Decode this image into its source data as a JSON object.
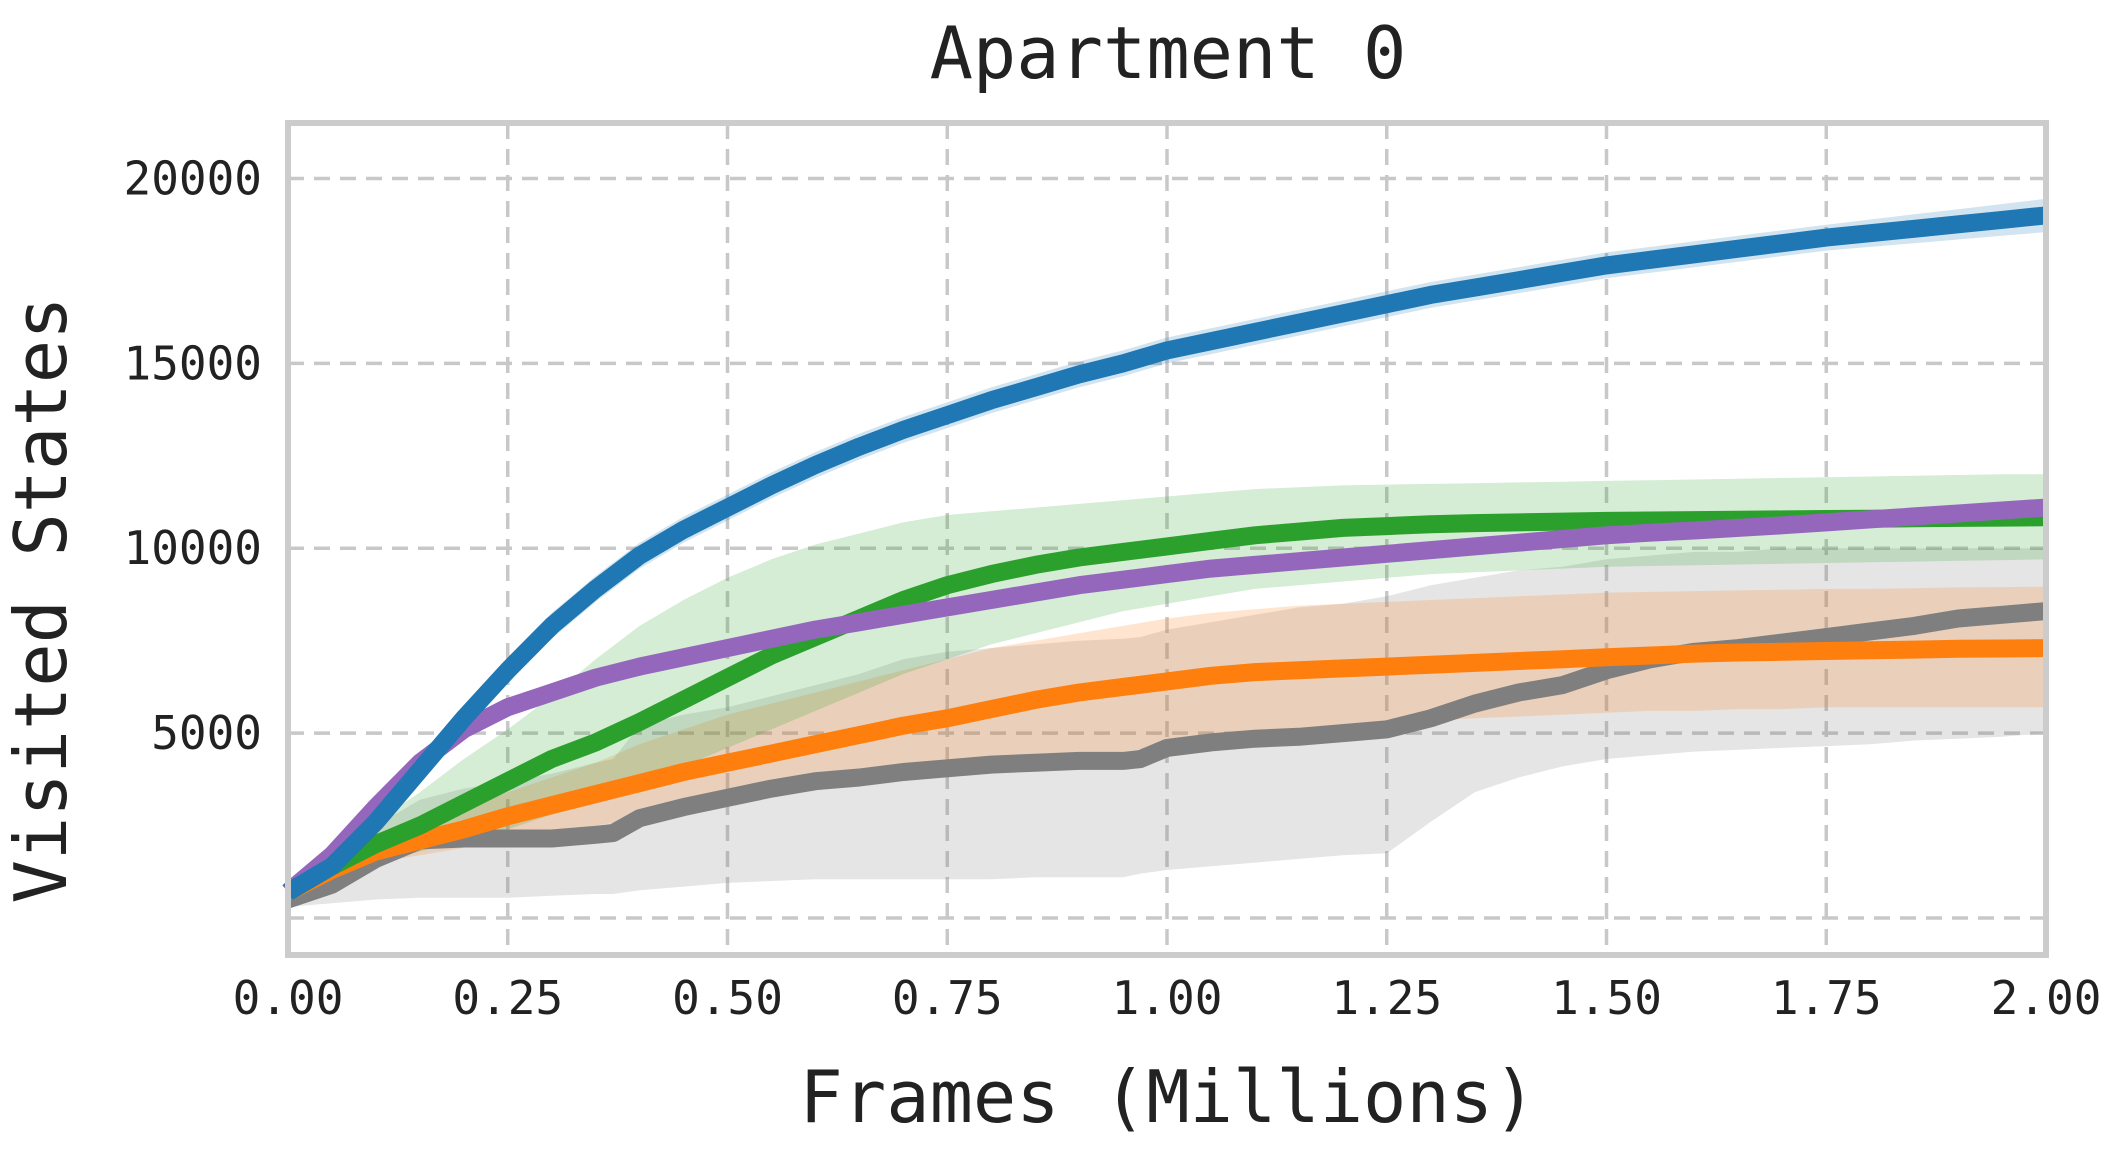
{
  "chart_data": {
    "type": "line",
    "title": "Apartment 0",
    "xlabel": "Frames (Millions)",
    "ylabel": "Visited States",
    "xlim": [
      0,
      2.0
    ],
    "ylim": [
      -1000,
      21500
    ],
    "xticks": [
      0,
      0.25,
      0.5,
      0.75,
      1.0,
      1.25,
      1.5,
      1.75,
      2.0
    ],
    "xtick_labels": [
      "0.00",
      "0.25",
      "0.50",
      "0.75",
      "1.00",
      "1.25",
      "1.50",
      "1.75",
      "2.00"
    ],
    "yticks": [
      0,
      5000,
      10000,
      15000,
      20000
    ],
    "ytick_labels": [
      "",
      "5000",
      "10000",
      "15000",
      "20000"
    ],
    "grid": true,
    "legend": "none",
    "series": [
      {
        "color": "#7f7f7f",
        "x": [
          0,
          0.05,
          0.1,
          0.15,
          0.2,
          0.25,
          0.3,
          0.35,
          0.37,
          0.4,
          0.45,
          0.5,
          0.55,
          0.6,
          0.65,
          0.7,
          0.75,
          0.8,
          0.85,
          0.9,
          0.95,
          0.97,
          1.0,
          1.05,
          1.1,
          1.15,
          1.2,
          1.25,
          1.3,
          1.35,
          1.4,
          1.45,
          1.5,
          1.55,
          1.6,
          1.65,
          1.7,
          1.75,
          1.8,
          1.85,
          1.9,
          1.95,
          2.0
        ],
        "y": [
          500,
          900,
          1600,
          2100,
          2150,
          2150,
          2150,
          2250,
          2300,
          2700,
          3000,
          3250,
          3500,
          3700,
          3800,
          3950,
          4050,
          4150,
          4200,
          4250,
          4250,
          4300,
          4600,
          4750,
          4850,
          4900,
          5000,
          5100,
          5400,
          5800,
          6100,
          6300,
          6700,
          7000,
          7200,
          7300,
          7450,
          7600,
          7750,
          7900,
          8100,
          8200,
          8300
        ],
        "lower": [
          300,
          400,
          500,
          550,
          550,
          550,
          600,
          650,
          650,
          750,
          850,
          950,
          1000,
          1050,
          1050,
          1050,
          1050,
          1050,
          1100,
          1100,
          1100,
          1200,
          1300,
          1400,
          1500,
          1600,
          1700,
          1750,
          2600,
          3400,
          3800,
          4100,
          4300,
          4400,
          4500,
          4550,
          4600,
          4650,
          4700,
          4800,
          4850,
          4900,
          5000
        ],
        "upper": [
          700,
          1600,
          2500,
          3200,
          3500,
          3700,
          3900,
          4200,
          4300,
          5200,
          5500,
          5700,
          6000,
          6300,
          6600,
          7000,
          7200,
          7300,
          7400,
          7500,
          7550,
          7600,
          7800,
          8000,
          8200,
          8400,
          8500,
          8700,
          9000,
          9200,
          9400,
          9500,
          9700,
          9800,
          9900,
          9900,
          10000,
          10000,
          10000,
          10000,
          10000,
          10000,
          10000
        ]
      },
      {
        "color": "#ff7f0e",
        "x": [
          0,
          0.05,
          0.1,
          0.15,
          0.2,
          0.25,
          0.3,
          0.35,
          0.4,
          0.45,
          0.5,
          0.55,
          0.6,
          0.65,
          0.7,
          0.75,
          0.8,
          0.85,
          0.9,
          0.95,
          1.0,
          1.05,
          1.1,
          1.15,
          1.2,
          1.25,
          1.3,
          1.35,
          1.4,
          1.45,
          1.5,
          1.55,
          1.6,
          1.65,
          1.7,
          1.75,
          1.8,
          1.85,
          1.9,
          1.95,
          2.0
        ],
        "y": [
          700,
          1300,
          1800,
          2100,
          2400,
          2750,
          3050,
          3350,
          3650,
          3950,
          4200,
          4450,
          4700,
          4950,
          5200,
          5400,
          5650,
          5900,
          6100,
          6250,
          6400,
          6550,
          6650,
          6700,
          6750,
          6800,
          6850,
          6900,
          6950,
          7000,
          7050,
          7100,
          7150,
          7180,
          7200,
          7220,
          7240,
          7260,
          7280,
          7290,
          7300
        ],
        "lower": [
          600,
          1100,
          1500,
          1700,
          1900,
          2100,
          2300,
          2500,
          2700,
          2900,
          3100,
          3300,
          3450,
          3600,
          3750,
          3900,
          4050,
          4200,
          4350,
          4500,
          4650,
          4800,
          4950,
          5050,
          5150,
          5250,
          5350,
          5400,
          5450,
          5500,
          5550,
          5600,
          5600,
          5650,
          5650,
          5700,
          5700,
          5700,
          5700,
          5700,
          5700
        ],
        "upper": [
          800,
          1500,
          2100,
          2600,
          3000,
          3400,
          3800,
          4200,
          4700,
          5100,
          5500,
          5800,
          6100,
          6400,
          6700,
          7000,
          7300,
          7500,
          7700,
          7900,
          8100,
          8250,
          8350,
          8450,
          8500,
          8550,
          8600,
          8650,
          8700,
          8750,
          8800,
          8820,
          8840,
          8860,
          8880,
          8900,
          8900,
          8920,
          8940,
          8950,
          8960
        ]
      },
      {
        "color": "#2ca02c",
        "x": [
          0,
          0.05,
          0.1,
          0.15,
          0.2,
          0.25,
          0.3,
          0.35,
          0.4,
          0.45,
          0.5,
          0.55,
          0.6,
          0.65,
          0.7,
          0.75,
          0.8,
          0.85,
          0.9,
          0.95,
          1.0,
          1.05,
          1.1,
          1.15,
          1.2,
          1.25,
          1.3,
          1.35,
          1.4,
          1.45,
          1.5,
          1.55,
          1.6,
          1.65,
          1.7,
          1.75,
          1.8,
          1.85,
          1.9,
          1.95,
          2.0
        ],
        "y": [
          700,
          1400,
          2000,
          2500,
          3100,
          3700,
          4300,
          4750,
          5300,
          5900,
          6500,
          7100,
          7600,
          8100,
          8600,
          9000,
          9300,
          9550,
          9750,
          9900,
          10050,
          10200,
          10350,
          10450,
          10550,
          10600,
          10650,
          10680,
          10700,
          10720,
          10740,
          10750,
          10760,
          10770,
          10780,
          10790,
          10800,
          10810,
          10820,
          10830,
          10840
        ],
        "lower": [
          600,
          1100,
          1500,
          1800,
          2100,
          2400,
          2800,
          3200,
          3600,
          4100,
          4600,
          5100,
          5600,
          6100,
          6600,
          7000,
          7400,
          7700,
          8000,
          8300,
          8500,
          8700,
          8900,
          9000,
          9100,
          9200,
          9300,
          9350,
          9400,
          9450,
          9500,
          9520,
          9540,
          9560,
          9580,
          9600,
          9620,
          9640,
          9660,
          9680,
          9700
        ],
        "upper": [
          800,
          1700,
          2600,
          3400,
          4300,
          5100,
          6000,
          7000,
          7900,
          8600,
          9200,
          9700,
          10100,
          10400,
          10700,
          10900,
          11000,
          11100,
          11200,
          11300,
          11400,
          11500,
          11600,
          11650,
          11700,
          11720,
          11740,
          11760,
          11780,
          11800,
          11820,
          11840,
          11860,
          11880,
          11900,
          11920,
          11940,
          11960,
          11980,
          12000,
          12000
        ]
      },
      {
        "color": "#9467bd",
        "x": [
          0,
          0.05,
          0.1,
          0.15,
          0.2,
          0.25,
          0.3,
          0.35,
          0.4,
          0.45,
          0.5,
          0.55,
          0.6,
          0.65,
          0.7,
          0.75,
          0.8,
          0.85,
          0.9,
          0.95,
          1.0,
          1.05,
          1.1,
          1.15,
          1.2,
          1.25,
          1.3,
          1.35,
          1.4,
          1.45,
          1.5,
          1.55,
          1.6,
          1.65,
          1.7,
          1.75,
          1.8,
          1.85,
          1.9,
          1.95,
          2.0
        ],
        "y": [
          700,
          1700,
          3000,
          4200,
          5100,
          5700,
          6100,
          6500,
          6800,
          7050,
          7300,
          7550,
          7800,
          8000,
          8200,
          8400,
          8600,
          8800,
          9000,
          9150,
          9300,
          9450,
          9550,
          9650,
          9750,
          9850,
          9950,
          10050,
          10150,
          10250,
          10350,
          10420,
          10480,
          10550,
          10620,
          10700,
          10780,
          10860,
          10940,
          11020,
          11100
        ],
        "lower": [
          650,
          1600,
          2850,
          4000,
          4900,
          5500,
          5900,
          6300,
          6600,
          6850,
          7100,
          7350,
          7600,
          7800,
          8000,
          8200,
          8400,
          8600,
          8800,
          8950,
          9100,
          9250,
          9350,
          9450,
          9550,
          9650,
          9750,
          9850,
          9950,
          10050,
          10150,
          10220,
          10280,
          10350,
          10420,
          10500,
          10580,
          10660,
          10740,
          10820,
          10900
        ],
        "upper": [
          750,
          1800,
          3150,
          4400,
          5300,
          5900,
          6300,
          6700,
          7000,
          7250,
          7500,
          7750,
          8000,
          8200,
          8400,
          8600,
          8800,
          9000,
          9200,
          9350,
          9500,
          9650,
          9750,
          9850,
          9950,
          10050,
          10150,
          10250,
          10350,
          10450,
          10550,
          10620,
          10680,
          10750,
          10820,
          10900,
          10980,
          11060,
          11140,
          11220,
          11300
        ]
      },
      {
        "color": "#1f77b4",
        "x": [
          0,
          0.05,
          0.1,
          0.15,
          0.2,
          0.25,
          0.3,
          0.35,
          0.4,
          0.45,
          0.5,
          0.55,
          0.6,
          0.65,
          0.7,
          0.75,
          0.8,
          0.85,
          0.9,
          0.95,
          1.0,
          1.05,
          1.1,
          1.15,
          1.2,
          1.25,
          1.3,
          1.35,
          1.4,
          1.45,
          1.5,
          1.55,
          1.6,
          1.65,
          1.7,
          1.75,
          1.8,
          1.85,
          1.9,
          1.95,
          2.0
        ],
        "y": [
          700,
          1400,
          2600,
          4000,
          5400,
          6700,
          7900,
          8900,
          9800,
          10500,
          11100,
          11700,
          12250,
          12750,
          13200,
          13600,
          14000,
          14350,
          14700,
          15000,
          15350,
          15600,
          15850,
          16100,
          16350,
          16600,
          16850,
          17050,
          17250,
          17450,
          17650,
          17800,
          17950,
          18100,
          18250,
          18400,
          18520,
          18640,
          18760,
          18880,
          19000
        ],
        "lower": [
          600,
          1250,
          2400,
          3750,
          5100,
          6350,
          7550,
          8550,
          9450,
          10150,
          10750,
          11350,
          11900,
          12400,
          12850,
          13250,
          13650,
          14000,
          14350,
          14650,
          15000,
          15250,
          15500,
          15750,
          16000,
          16250,
          16500,
          16700,
          16900,
          17100,
          17300,
          17450,
          17600,
          17750,
          17900,
          18050,
          18150,
          18250,
          18350,
          18450,
          18550
        ],
        "upper": [
          800,
          1550,
          2800,
          4250,
          5700,
          7050,
          8250,
          9250,
          10150,
          10850,
          11450,
          12050,
          12600,
          13100,
          13550,
          13950,
          14350,
          14700,
          15050,
          15350,
          15700,
          15950,
          16200,
          16450,
          16700,
          16950,
          17200,
          17400,
          17600,
          17800,
          18000,
          18150,
          18300,
          18450,
          18600,
          18750,
          18890,
          19030,
          19170,
          19310,
          19450
        ]
      }
    ]
  }
}
